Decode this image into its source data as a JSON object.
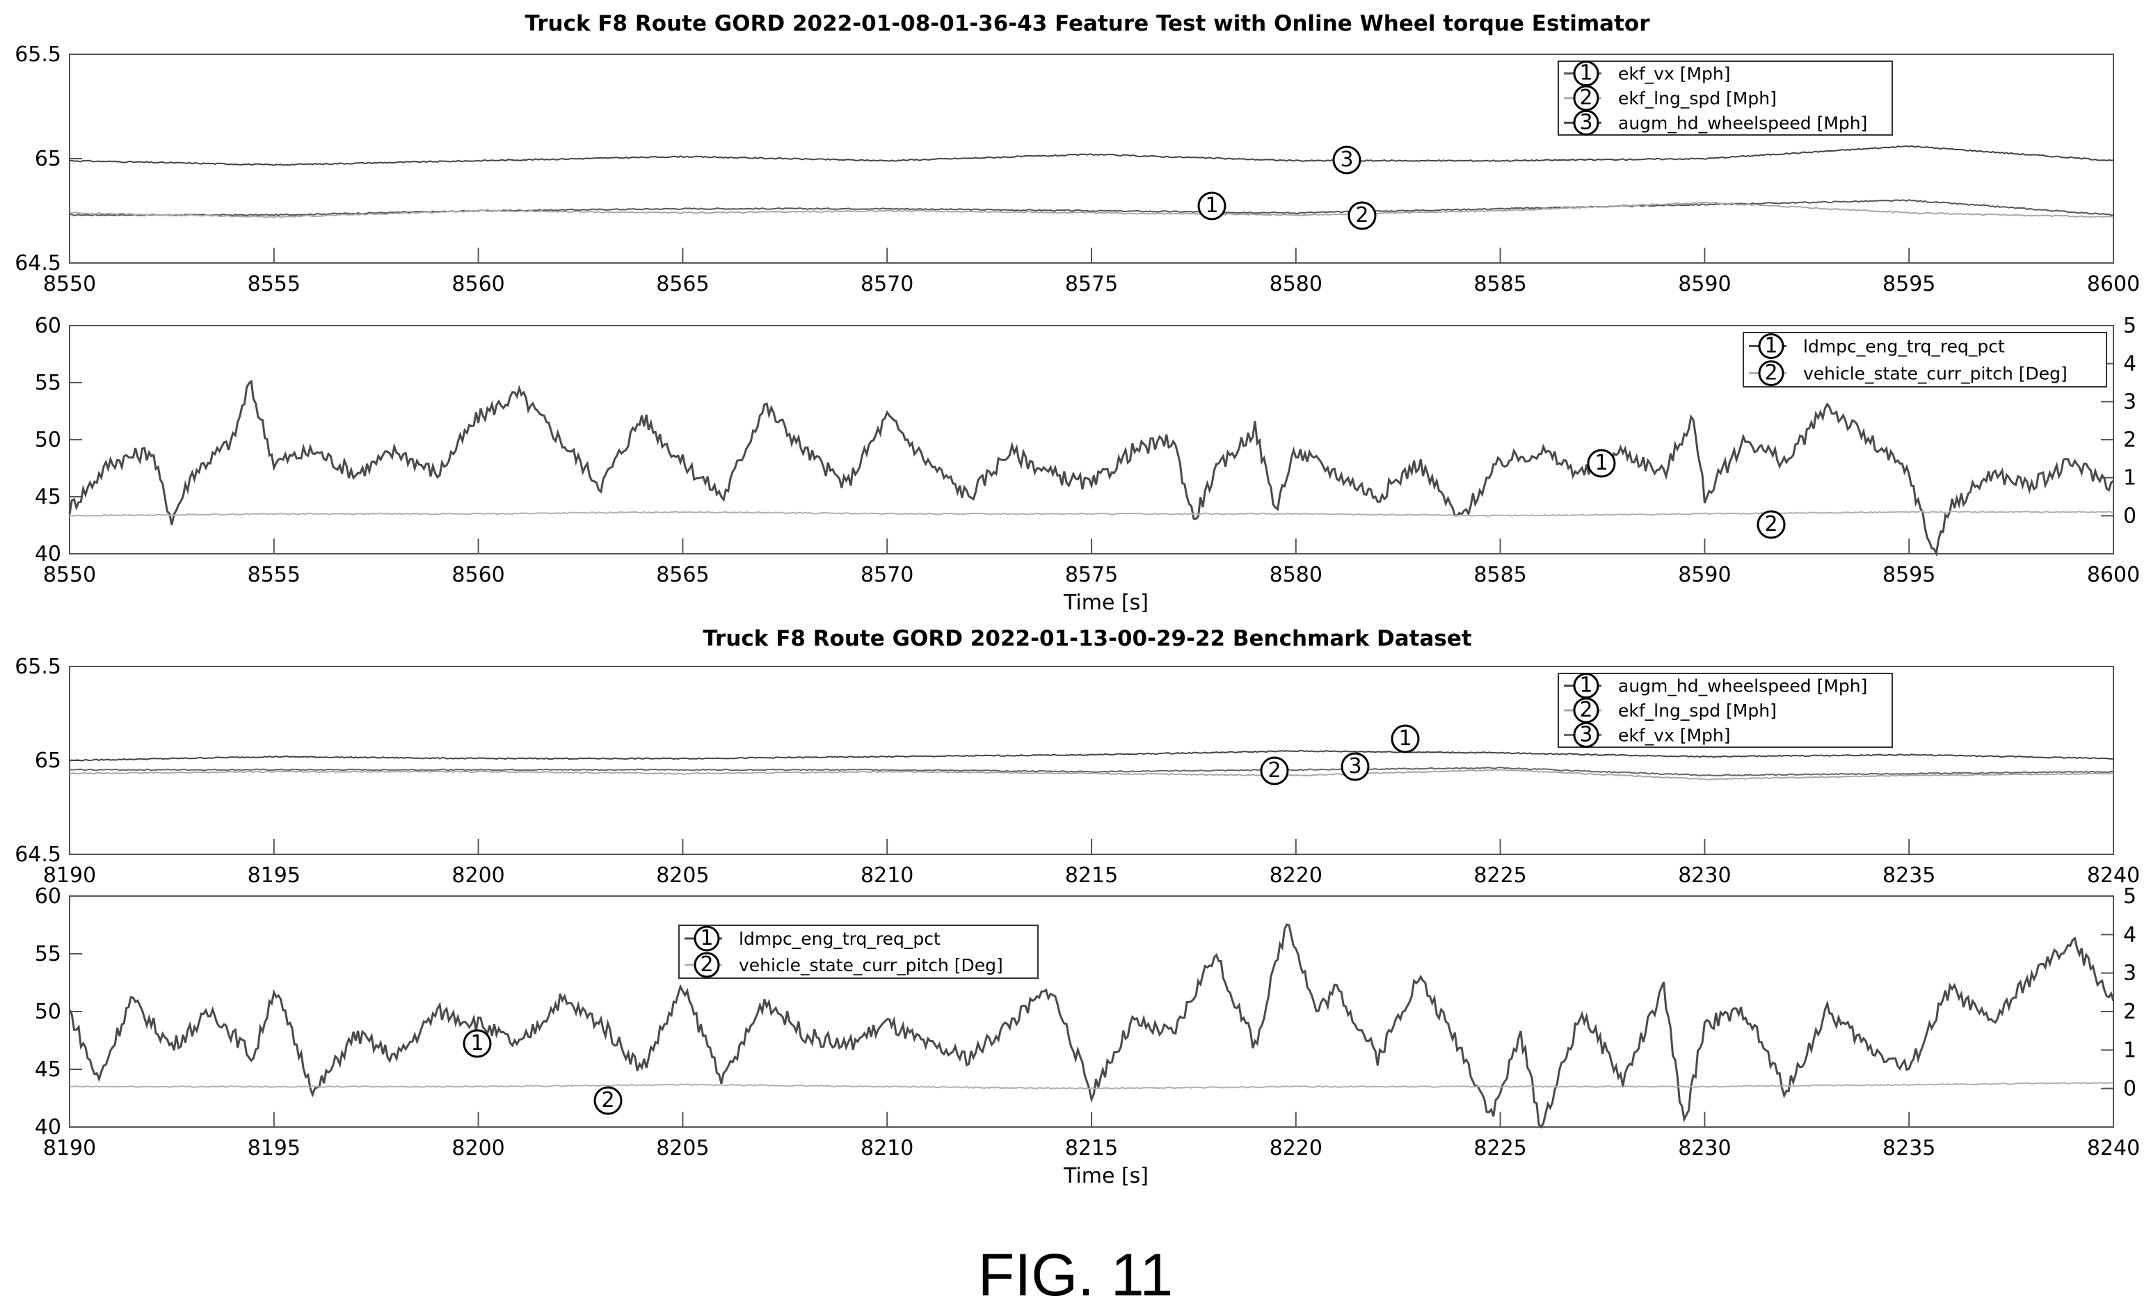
{
  "figure_label": "FIG. 11",
  "chart_data": [
    {
      "type": "line",
      "title": "Truck F8    Route GORD      2022-01-08-01-36-43      Feature Test with Online Wheel torque Estimator",
      "xlabel": "",
      "ylabel": "",
      "xlim": [
        8550,
        8600
      ],
      "ylim": [
        64.5,
        65.5
      ],
      "x_ticks": [
        "8550",
        "8555",
        "8560",
        "8565",
        "8570",
        "8575",
        "8580",
        "8585",
        "8590",
        "8595",
        "8600"
      ],
      "y_ticks": [
        "64.5",
        "65",
        "65.5"
      ],
      "grid": false,
      "legend_position": "top-right",
      "series": [
        {
          "marker": "1",
          "name": "ekf_vx [Mph]",
          "color": "#555555",
          "x": [
            8550,
            8555,
            8560,
            8565,
            8570,
            8575,
            8580,
            8585,
            8590,
            8595,
            8600
          ],
          "values": [
            64.73,
            64.73,
            64.75,
            64.76,
            64.76,
            64.75,
            64.74,
            64.76,
            64.78,
            64.8,
            64.73
          ]
        },
        {
          "marker": "2",
          "name": "ekf_lng_spd [Mph]",
          "color": "#a8a8a8",
          "x": [
            8550,
            8555,
            8560,
            8565,
            8570,
            8575,
            8580,
            8585,
            8590,
            8595,
            8600
          ],
          "values": [
            64.74,
            64.72,
            64.75,
            64.74,
            64.75,
            64.74,
            64.73,
            64.75,
            64.79,
            64.74,
            64.72
          ]
        },
        {
          "marker": "3",
          "name": "augm_hd_wheelspeed [Mph]",
          "color": "#444444",
          "x": [
            8550,
            8555,
            8560,
            8565,
            8570,
            8575,
            8580,
            8585,
            8590,
            8595,
            8600
          ],
          "values": [
            64.99,
            64.97,
            64.99,
            65.01,
            64.99,
            65.02,
            64.99,
            64.99,
            65.0,
            65.06,
            64.99
          ]
        }
      ]
    },
    {
      "type": "line",
      "title": "",
      "xlabel": "Time [s]",
      "ylabel": "",
      "xlim": [
        8550,
        8600
      ],
      "ylim": [
        40,
        60
      ],
      "y2lim": [
        -1,
        5
      ],
      "x_ticks": [
        "8550",
        "8555",
        "8560",
        "8565",
        "8570",
        "8575",
        "8580",
        "8585",
        "8590",
        "8595",
        "8600"
      ],
      "y_ticks": [
        "40",
        "45",
        "50",
        "55",
        "60"
      ],
      "y2_ticks": [
        "0",
        "1",
        "2",
        "3",
        "4",
        "5"
      ],
      "grid": false,
      "legend_position": "top-right",
      "series": [
        {
          "marker": "1",
          "name": "ldmpc_eng_trq_req_pct",
          "color": "#4a4a4a",
          "axis": "left",
          "x": [
            8550,
            8551,
            8552,
            8552.5,
            8553,
            8554,
            8554.4,
            8555,
            8556,
            8557,
            8558,
            8559,
            8560,
            8561,
            8562,
            8563,
            8564,
            8565,
            8566,
            8567,
            8568,
            8569,
            8570,
            8571,
            8572,
            8573,
            8574,
            8575,
            8576,
            8577,
            8577.5,
            8578,
            8579,
            8579.5,
            8580,
            8581,
            8582,
            8583,
            8584,
            8585,
            8586,
            8587,
            8588,
            8589,
            8589.7,
            8590,
            8591,
            8592,
            8593,
            8594,
            8595,
            8595.6,
            8596,
            8597,
            8598,
            8599,
            8600
          ],
          "values": [
            44,
            48,
            49,
            43,
            47,
            50,
            55,
            48,
            49,
            47,
            49,
            47,
            52,
            54,
            50,
            46,
            52,
            48,
            45,
            53,
            49,
            46,
            52,
            48,
            45,
            49,
            47,
            46,
            49,
            50,
            43,
            47,
            51,
            44,
            49,
            47,
            45,
            48,
            43,
            48,
            49,
            47,
            49,
            47,
            52,
            45,
            50,
            48,
            53,
            50,
            47,
            40,
            44,
            47,
            46,
            48,
            46
          ]
        },
        {
          "marker": "2",
          "name": "vehicle_state_curr_pitch [Deg]",
          "color": "#b0b0b0",
          "axis": "right",
          "x": [
            8550,
            8555,
            8560,
            8565,
            8570,
            8575,
            8580,
            8585,
            8590,
            8595,
            8600
          ],
          "values": [
            0.0,
            0.05,
            0.05,
            0.1,
            0.05,
            0.05,
            0.05,
            0.0,
            0.05,
            0.1,
            0.1
          ]
        }
      ]
    },
    {
      "type": "line",
      "title": "Truck F8    Route GORD      2022-01-13-00-29-22      Benchmark Dataset",
      "xlabel": "",
      "ylabel": "",
      "xlim": [
        8190,
        8240
      ],
      "ylim": [
        64.5,
        65.5
      ],
      "x_ticks": [
        "8190",
        "8195",
        "8200",
        "8205",
        "8210",
        "8215",
        "8220",
        "8225",
        "8230",
        "8235",
        "8240"
      ],
      "y_ticks": [
        "64.5",
        "65",
        "65.5"
      ],
      "grid": false,
      "legend_position": "top-right",
      "series": [
        {
          "marker": "1",
          "name": "augm_hd_wheelspeed [Mph]",
          "color": "#444444",
          "x": [
            8190,
            8195,
            8200,
            8205,
            8210,
            8215,
            8220,
            8225,
            8230,
            8235,
            8240
          ],
          "values": [
            65.0,
            65.02,
            65.01,
            65.01,
            65.02,
            65.03,
            65.05,
            65.04,
            65.02,
            65.03,
            65.01
          ]
        },
        {
          "marker": "2",
          "name": "ekf_lng_spd [Mph]",
          "color": "#a8a8a8",
          "x": [
            8190,
            8195,
            8200,
            8205,
            8210,
            8215,
            8220,
            8225,
            8230,
            8235,
            8240
          ],
          "values": [
            64.93,
            64.94,
            64.94,
            64.93,
            64.94,
            64.93,
            64.92,
            64.95,
            64.9,
            64.92,
            64.93
          ]
        },
        {
          "marker": "3",
          "name": "ekf_vx [Mph]",
          "color": "#666666",
          "x": [
            8190,
            8195,
            8200,
            8205,
            8210,
            8215,
            8220,
            8225,
            8230,
            8235,
            8240
          ],
          "values": [
            64.95,
            64.95,
            64.95,
            64.95,
            64.95,
            64.94,
            64.95,
            64.96,
            64.92,
            64.93,
            64.94
          ]
        }
      ]
    },
    {
      "type": "line",
      "title": "",
      "xlabel": "Time [s]",
      "ylabel": "",
      "xlim": [
        8190,
        8240
      ],
      "ylim": [
        40,
        60
      ],
      "y2lim": [
        -1,
        5
      ],
      "x_ticks": [
        "8190",
        "8195",
        "8200",
        "8205",
        "8210",
        "8215",
        "8220",
        "8225",
        "8230",
        "8235",
        "8240"
      ],
      "y_ticks": [
        "40",
        "45",
        "50",
        "55",
        "60"
      ],
      "y2_ticks": [
        "0",
        "1",
        "2",
        "3",
        "4",
        "5"
      ],
      "grid": false,
      "legend_position": "top-left",
      "series": [
        {
          "marker": "1",
          "name": "ldmpc_eng_trq_req_pct",
          "color": "#4a4a4a",
          "axis": "left",
          "x": [
            8190,
            8190.7,
            8191.5,
            8192.5,
            8193.5,
            8194.5,
            8195,
            8196,
            8197,
            8198,
            8199,
            8200,
            8201,
            8202,
            8203,
            8204,
            8205,
            8206,
            8207,
            8208,
            8209,
            8210,
            8211,
            8212,
            8213,
            8214,
            8215,
            8216,
            8217,
            8218,
            8219,
            8219.8,
            8220.5,
            8221,
            8222,
            8223,
            8224,
            8224.8,
            8225.5,
            8226,
            8227,
            8228,
            8229,
            8229.5,
            8230,
            8231,
            8232,
            8233,
            8234,
            8235,
            8236,
            8237,
            8238,
            8239,
            8240
          ],
          "values": [
            50,
            44,
            51,
            47,
            50,
            46,
            52,
            43,
            48,
            46,
            50,
            49,
            47,
            51,
            49,
            45,
            52,
            44,
            51,
            48,
            47,
            49,
            47,
            46,
            49,
            52,
            43,
            49,
            48,
            55,
            47,
            58,
            50,
            52,
            46,
            53,
            47,
            41,
            48,
            40,
            50,
            44,
            52,
            40,
            49,
            50,
            43,
            50,
            47,
            45,
            52,
            49,
            53,
            56,
            51
          ]
        },
        {
          "marker": "2",
          "name": "vehicle_state_curr_pitch [Deg]",
          "color": "#b0b0b0",
          "axis": "right",
          "x": [
            8190,
            8195,
            8200,
            8205,
            8210,
            8215,
            8220,
            8225,
            8230,
            8235,
            8240
          ],
          "values": [
            0.05,
            0.05,
            0.05,
            0.1,
            0.05,
            0.0,
            0.05,
            0.05,
            0.05,
            0.1,
            0.15
          ]
        }
      ]
    }
  ]
}
